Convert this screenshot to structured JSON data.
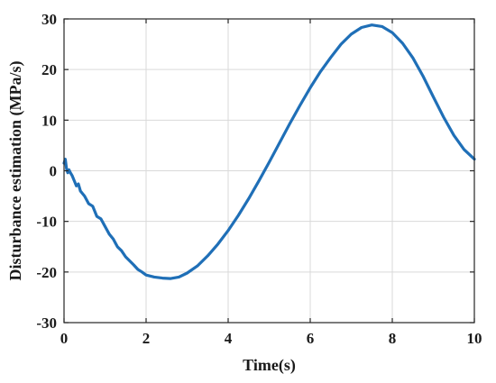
{
  "chart_data": {
    "type": "line",
    "title": "",
    "xlabel": "Time(s)",
    "ylabel": "Disturbance estimation (MPa/s)",
    "xlim": [
      0,
      10
    ],
    "ylim": [
      -30,
      30
    ],
    "xticks": [
      "0",
      "2",
      "4",
      "6",
      "8",
      "10"
    ],
    "yticks": [
      "-30",
      "-20",
      "-10",
      "0",
      "10",
      "20",
      "30"
    ],
    "grid": true,
    "legend": "none",
    "series": [
      {
        "color": "#1f6fb7",
        "x": [
          0,
          0.03,
          0.06,
          0.09,
          0.12,
          0.15,
          0.2,
          0.25,
          0.3,
          0.35,
          0.4,
          0.5,
          0.6,
          0.7,
          0.8,
          0.9,
          1.0,
          1.1,
          1.2,
          1.3,
          1.4,
          1.5,
          1.6,
          1.7,
          1.8,
          1.9,
          2.0,
          2.2,
          2.4,
          2.6,
          2.8,
          3.0,
          3.25,
          3.5,
          3.75,
          4.0,
          4.25,
          4.5,
          4.75,
          5.0,
          5.25,
          5.5,
          5.75,
          6.0,
          6.25,
          6.5,
          6.75,
          7.0,
          7.25,
          7.5,
          7.75,
          8.0,
          8.25,
          8.5,
          8.75,
          9.0,
          9.25,
          9.5,
          9.75,
          10.0
        ],
        "values": [
          1.5,
          2.3,
          0.5,
          -0.4,
          0.2,
          -0.3,
          -1.0,
          -2.0,
          -3.0,
          -2.6,
          -4.0,
          -5.0,
          -6.5,
          -7.0,
          -9.0,
          -9.5,
          -11.0,
          -12.5,
          -13.5,
          -15.0,
          -15.8,
          -17.0,
          -17.8,
          -18.6,
          -19.5,
          -20.0,
          -20.6,
          -21.0,
          -21.2,
          -21.3,
          -21.0,
          -20.2,
          -18.8,
          -16.8,
          -14.5,
          -11.8,
          -8.8,
          -5.5,
          -2.0,
          1.7,
          5.5,
          9.3,
          12.9,
          16.4,
          19.6,
          22.4,
          25.0,
          27.0,
          28.3,
          28.8,
          28.5,
          27.3,
          25.2,
          22.3,
          18.7,
          14.6,
          10.6,
          7.0,
          4.2,
          2.3
        ]
      }
    ]
  }
}
